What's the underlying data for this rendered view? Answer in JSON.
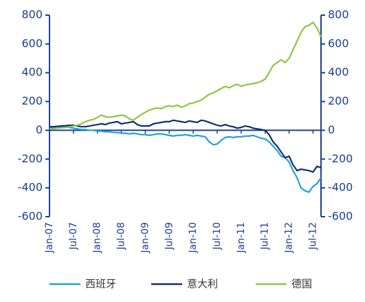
{
  "chart_data": {
    "type": "line",
    "categories": [
      "Jan-07",
      null,
      null,
      null,
      null,
      null,
      "Jul-07",
      null,
      null,
      null,
      null,
      null,
      "Jan-08",
      null,
      null,
      null,
      null,
      null,
      "Jul-08",
      null,
      null,
      null,
      null,
      null,
      "Jan-09",
      null,
      null,
      null,
      null,
      null,
      "Jul-09",
      null,
      null,
      null,
      null,
      null,
      "Jan-10",
      null,
      null,
      null,
      null,
      null,
      "Jul-10",
      null,
      null,
      null,
      null,
      null,
      "Jan-11",
      null,
      null,
      null,
      null,
      null,
      "Jul-11",
      null,
      null,
      null,
      null,
      null,
      "Jan-12",
      null,
      null,
      null,
      null,
      null,
      "Jul-12",
      null,
      null
    ],
    "series": [
      {
        "name": "西班牙",
        "color": "#1ea0dc",
        "values": [
          20,
          20,
          22,
          25,
          25,
          20,
          15,
          10,
          5,
          5,
          0,
          0,
          -5,
          -5,
          -10,
          -10,
          -15,
          -15,
          -20,
          -20,
          -25,
          -20,
          -25,
          -30,
          -30,
          -35,
          -30,
          -25,
          -25,
          -30,
          -35,
          -40,
          -35,
          -35,
          -30,
          -35,
          -40,
          -35,
          -40,
          -45,
          -80,
          -100,
          -95,
          -70,
          -50,
          -45,
          -50,
          -45,
          -45,
          -40,
          -40,
          -35,
          -45,
          -55,
          -60,
          -80,
          -110,
          -140,
          -180,
          -190,
          -220,
          -280,
          -330,
          -400,
          -420,
          -430,
          -390,
          -370,
          -330
        ]
      },
      {
        "name": "意大利",
        "color": "#0f2d6e",
        "values": [
          25,
          25,
          28,
          30,
          32,
          35,
          35,
          30,
          25,
          25,
          30,
          35,
          40,
          45,
          40,
          50,
          55,
          60,
          45,
          50,
          55,
          60,
          40,
          30,
          30,
          30,
          45,
          50,
          55,
          60,
          60,
          70,
          65,
          60,
          55,
          65,
          60,
          55,
          70,
          65,
          55,
          45,
          35,
          30,
          40,
          30,
          25,
          15,
          20,
          30,
          25,
          15,
          10,
          5,
          0,
          -30,
          -80,
          -110,
          -150,
          -190,
          -180,
          -240,
          -280,
          -270,
          -275,
          -280,
          -290,
          -250,
          -260
        ]
      },
      {
        "name": "德国",
        "color": "#8cc63f",
        "values": [
          10,
          12,
          15,
          18,
          20,
          25,
          30,
          35,
          45,
          60,
          70,
          75,
          90,
          105,
          95,
          90,
          95,
          100,
          105,
          100,
          80,
          70,
          90,
          110,
          125,
          140,
          150,
          155,
          150,
          165,
          170,
          165,
          175,
          160,
          170,
          185,
          190,
          200,
          210,
          230,
          250,
          260,
          275,
          290,
          305,
          295,
          310,
          320,
          305,
          315,
          320,
          325,
          330,
          340,
          355,
          400,
          450,
          470,
          490,
          470,
          500,
          560,
          620,
          680,
          720,
          730,
          750,
          710,
          650
        ]
      }
    ],
    "ylim": [
      -600,
      800
    ],
    "yticks": [
      -600,
      -400,
      -200,
      0,
      200,
      400,
      600,
      800
    ],
    "y2lim": [
      -600,
      800
    ],
    "y2ticks": [
      -600,
      -400,
      -200,
      0,
      200,
      400,
      600,
      800
    ],
    "legend": "bottom"
  }
}
